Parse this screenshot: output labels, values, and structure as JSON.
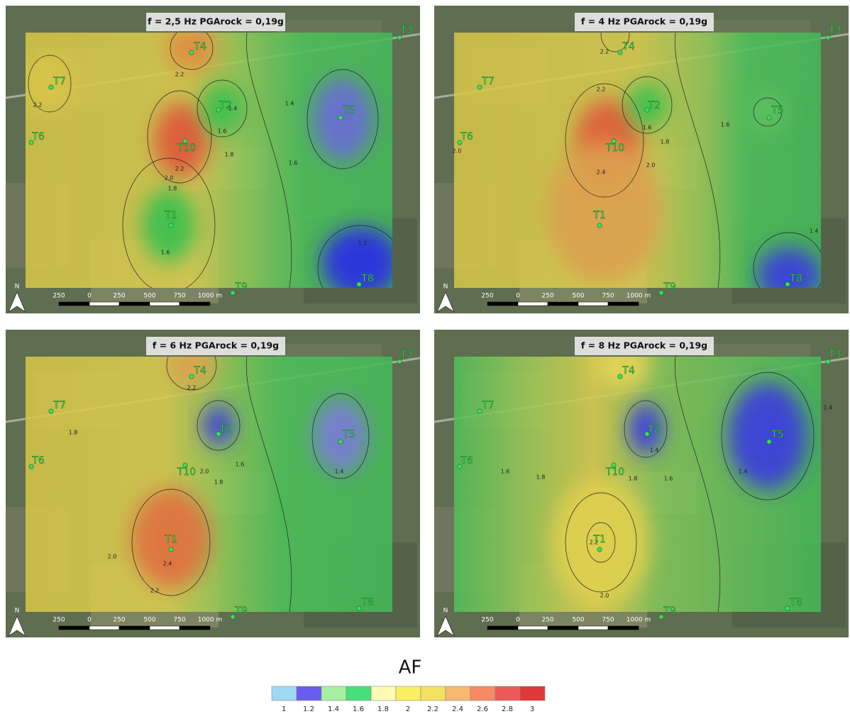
{
  "panels": [
    {
      "title": "f = 2,5 Hz  PGArock = 0,19g",
      "stations": [
        "T1",
        "T2",
        "T3",
        "T4",
        "T5",
        "T6",
        "T7",
        "T8",
        "T9",
        "T10"
      ],
      "contour_labels": [
        "2.2",
        "2.2",
        "2.2",
        "1.4",
        "1.6",
        "1.8",
        "2.0",
        "1.8",
        "1.6",
        "1.4",
        "1.6",
        "1.2"
      ]
    },
    {
      "title": "f = 4 Hz  PGArock = 0,19g",
      "stations": [
        "T1",
        "T2",
        "T3",
        "T4",
        "T5",
        "T6",
        "T7",
        "T8",
        "T9",
        "T10"
      ],
      "contour_labels": [
        "2.2",
        "2.2",
        "2.0",
        "1.6",
        "1.8",
        "2.0",
        "2.4",
        "1.6",
        "1.4"
      ]
    },
    {
      "title": "f = 6 Hz  PGArock = 0,19g",
      "stations": [
        "T1",
        "T2",
        "T3",
        "T4",
        "T5",
        "T6",
        "T7",
        "T8",
        "T9",
        "T10"
      ],
      "contour_labels": [
        "2.2",
        "1.8",
        "2.0",
        "2.0",
        "1.8",
        "1.6",
        "2.4",
        "2.2",
        "1.4"
      ]
    },
    {
      "title": "f = 8 Hz  PGArock = 0,19g",
      "stations": [
        "T1",
        "T2",
        "T3",
        "T4",
        "T5",
        "T6",
        "T7",
        "T8",
        "T9",
        "T10"
      ],
      "contour_labels": [
        "1.6",
        "1.8",
        "1.8",
        "2.2",
        "2.0",
        "1.4",
        "1.6",
        "1.4",
        "1.4"
      ]
    }
  ],
  "scale_bar": {
    "labels": [
      "250",
      "0",
      "250",
      "500",
      "750",
      "1000 m"
    ],
    "north": "N"
  },
  "legend": {
    "title": "AF",
    "ticks": [
      1,
      1.2,
      1.4,
      1.6,
      1.8,
      2,
      2.2,
      2.4,
      2.6,
      2.8,
      3
    ],
    "colors": [
      "#9fd8f5",
      "#6a5cf0",
      "#a6f0a2",
      "#46e07a",
      "#fffbb4",
      "#f8f060",
      "#f4e060",
      "#f8b870",
      "#f88a62",
      "#f05858",
      "#e03838"
    ]
  }
}
